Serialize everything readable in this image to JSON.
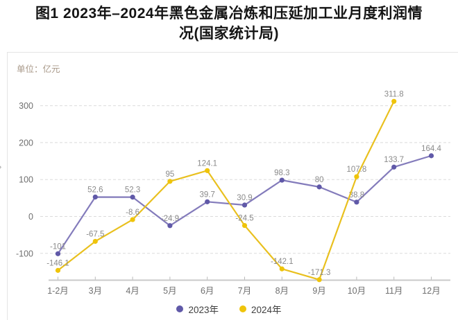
{
  "title": {
    "line1": "图1  2023年–2024年黑色金属冶炼和压延加工业月度利润情",
    "line2": "况(国家统计局)"
  },
  "unit_label": "单位：亿元",
  "chevron_glyph": "›",
  "colors": {
    "title_text": "#141414",
    "unit_text": "#A79787",
    "grid_line": "#DBDBDB",
    "axis_line": "#C9C9C9",
    "axis_tick": "#B9B9B9",
    "axis_text": "#6F6F6F",
    "data_label_text": "#8A8A8A",
    "legend_text": "#3F3F3F",
    "card_border": "#E4E4E4",
    "chevron": "#A5A5A5"
  },
  "chart_data": {
    "type": "line",
    "title": "图1 2023年–2024年黑色金属冶炼和压延加工业月度利润情况(国家统计局)",
    "unit": "亿元",
    "categories": [
      "1-2月",
      "3月",
      "4月",
      "5月",
      "6月",
      "7月",
      "8月",
      "9月",
      "10月",
      "11月",
      "12月"
    ],
    "series": [
      {
        "name": "2023年",
        "line_color": "#837BBB",
        "point_color": "#6059A8",
        "values": [
          -101,
          52.6,
          52.3,
          -24.9,
          39.7,
          30.9,
          98.3,
          80,
          38.8,
          133.7,
          164.4
        ]
      },
      {
        "name": "2024年",
        "line_color": "#E9C01E",
        "point_color": "#EFC40A",
        "values": [
          -146.1,
          -67.5,
          -8.6,
          95,
          124.1,
          -24.5,
          -142.1,
          -171.3,
          107.8,
          311.8,
          null
        ]
      }
    ],
    "y_ticks": [
      300,
      200,
      100,
      0,
      -100
    ],
    "ylim": [
      -185,
      330
    ],
    "grid": "dashed",
    "legend_position": "bottom"
  }
}
